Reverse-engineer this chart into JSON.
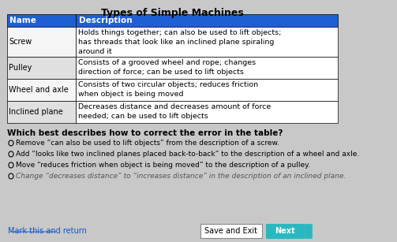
{
  "title": "Types of Simple Machines",
  "bg_color": "#c8c8c8",
  "table": {
    "header_name": "Name",
    "header_desc": "Description",
    "header_bg": "#1e5fd4",
    "header_text_color": "#ffffff",
    "row_bg_odd": "#f0f0f0",
    "row_bg_even": "#d8d8d8",
    "rows": [
      {
        "name": "Screw",
        "desc": "Holds things together; can also be used to lift objects;\nhas threads that look like an inclined plane spiraling\naround it"
      },
      {
        "name": "Pulley",
        "desc": "Consists of a grooved wheel and rope; changes\ndirection of force; can be used to lift objects"
      },
      {
        "name": "Wheel and axle",
        "desc": "Consists of two circular objects; reduces friction\nwhen object is being moved"
      },
      {
        "name": "Inclined plane",
        "desc": "Decreases distance and decreases amount of force\nneeded; can be used to lift objects"
      }
    ]
  },
  "question": "Which best describes how to correct the error in the table?",
  "options": [
    "Remove “can also be used to lift objects” from the description of a screw.",
    "Add “looks like two inclined planes placed back-to-back” to the description of a wheel and axle.",
    "Move “reduces friction when object is being moved” to the description of a pulley.",
    "Change “decreases distance” to “increases distance” in the description of an inclined plane."
  ],
  "correct_option_index": 3,
  "footer_link": "Mark this and return",
  "footer_btn1": "Save and Exit",
  "footer_btn2": "Next"
}
